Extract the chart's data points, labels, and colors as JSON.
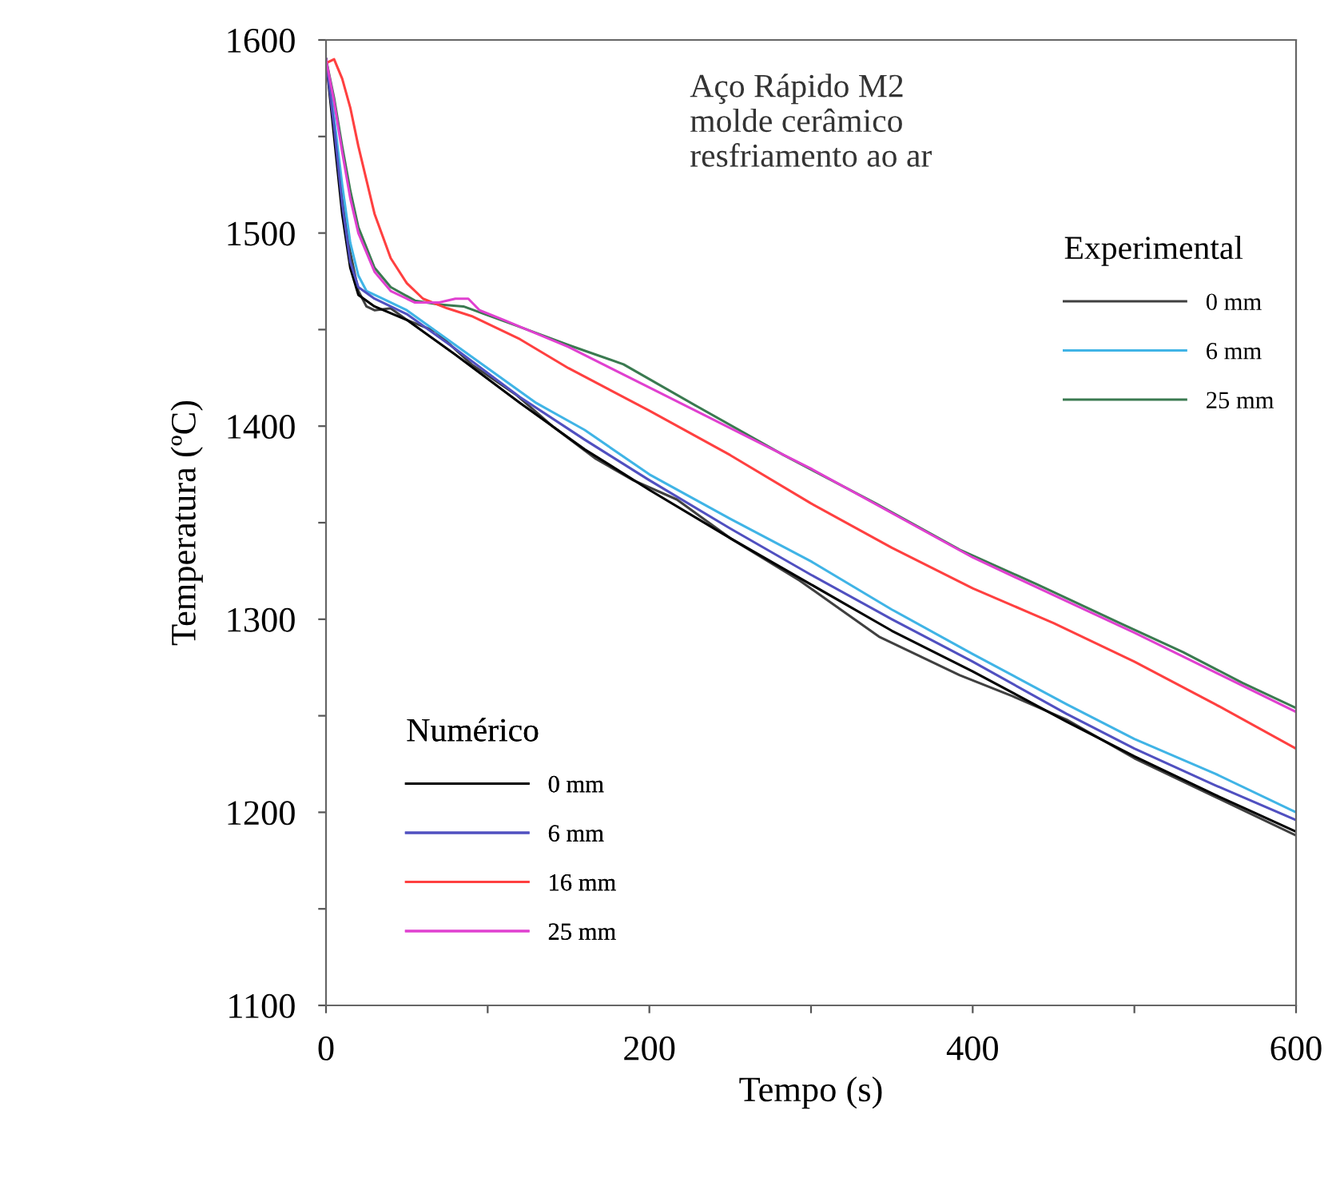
{
  "chart_data": {
    "type": "line",
    "xlabel": "Tempo (s)",
    "ylabel": "Temperatura (ºC)",
    "legend_title": [
      "Experimental",
      "Numérico"
    ],
    "annotations": [
      "Aço Rápido M2\nmolde cerâmico\nresfriamento ao ar"
    ],
    "xlim": [
      0,
      600
    ],
    "xticks": [
      0,
      {
        "value": 100,
        "label": null
      },
      200,
      {
        "value": 300,
        "label": null
      },
      400,
      {
        "value": 500,
        "label": null
      },
      600
    ],
    "ylim": [
      1100,
      1600
    ],
    "yticks": [
      1100,
      {
        "value": 1150,
        "label": null
      },
      1200,
      {
        "value": 1250,
        "label": null
      },
      1300,
      {
        "value": 1350,
        "label": null
      },
      1400,
      {
        "value": 1450,
        "label": null
      },
      1500,
      {
        "value": 1550,
        "label": null
      },
      1600
    ],
    "grid": false,
    "legend": [
      "right",
      "bottom left"
    ],
    "series": [
      {
        "name": "0 mm",
        "color": "#404040",
        "x": [
          0,
          3,
          6,
          10,
          15,
          20,
          25,
          30,
          40,
          50,
          68,
          90,
          118,
          140,
          167,
          190,
          217,
          250,
          293,
          342,
          392,
          425,
          458,
          500,
          550,
          600
        ],
        "values": [
          1590,
          1575,
          1550,
          1520,
          1490,
          1470,
          1462,
          1460,
          1461,
          1455,
          1449,
          1432,
          1416,
          1400,
          1383,
          1372,
          1362,
          1342,
          1320,
          1291,
          1271,
          1260,
          1248,
          1228,
          1208,
          1188
        ]
      },
      {
        "name": "6 mm",
        "color": "#40b4e6",
        "x": [
          0,
          5,
          10,
          15,
          20,
          25,
          35,
          50,
          70,
          100,
          130,
          160,
          200,
          250,
          300,
          350,
          400,
          458,
          500,
          550,
          600
        ],
        "values": [
          1590,
          1560,
          1525,
          1495,
          1478,
          1470,
          1466,
          1460,
          1448,
          1430,
          1412,
          1398,
          1375,
          1352,
          1330,
          1305,
          1282,
          1256,
          1238,
          1220,
          1200
        ]
      },
      {
        "name": "25 mm",
        "color": "#3a7a50",
        "x": [
          0,
          5,
          10,
          15,
          20,
          30,
          40,
          55,
          70,
          85,
          118,
          150,
          184,
          230,
          283,
          340,
          392,
          440,
          491,
          530,
          567,
          600
        ],
        "values": [
          1590,
          1570,
          1545,
          1522,
          1503,
          1482,
          1472,
          1465,
          1463,
          1462,
          1452,
          1442,
          1432,
          1410,
          1385,
          1360,
          1336,
          1318,
          1298,
          1283,
          1267,
          1254
        ]
      },
      {
        "name": "0 mm",
        "color": "#000000",
        "x": [
          0,
          5,
          10,
          15,
          20,
          30,
          50,
          80,
          120,
          160,
          200,
          250,
          300,
          350,
          400,
          458,
          500,
          550,
          600
        ],
        "values": [
          1590,
          1550,
          1510,
          1482,
          1468,
          1462,
          1455,
          1437,
          1412,
          1388,
          1367,
          1342,
          1318,
          1294,
          1273,
          1247,
          1229,
          1209,
          1190
        ]
      },
      {
        "name": "6 mm",
        "color": "#5050c0",
        "x": [
          0,
          5,
          10,
          15,
          20,
          30,
          50,
          80,
          120,
          160,
          200,
          250,
          300,
          350,
          400,
          458,
          500,
          550,
          600
        ],
        "values": [
          1590,
          1555,
          1515,
          1485,
          1472,
          1466,
          1458,
          1440,
          1415,
          1393,
          1372,
          1347,
          1323,
          1300,
          1278,
          1251,
          1233,
          1214,
          1196
        ]
      },
      {
        "name": "16 mm",
        "color": "#ff4040",
        "x": [
          0,
          5,
          10,
          15,
          20,
          30,
          40,
          50,
          60,
          75,
          90,
          120,
          150,
          200,
          250,
          300,
          350,
          400,
          450,
          500,
          550,
          600
        ],
        "values": [
          1588,
          1590,
          1580,
          1565,
          1545,
          1510,
          1487,
          1474,
          1466,
          1461,
          1457,
          1445,
          1430,
          1408,
          1385,
          1360,
          1337,
          1316,
          1298,
          1278,
          1256,
          1233
        ]
      },
      {
        "name": "25 mm",
        "color": "#e040d0",
        "x": [
          0,
          5,
          10,
          15,
          20,
          30,
          40,
          55,
          70,
          80,
          88,
          95,
          110,
          150,
          200,
          300,
          400,
          500,
          600
        ],
        "values": [
          1590,
          1568,
          1542,
          1518,
          1500,
          1480,
          1470,
          1464,
          1464,
          1466,
          1466,
          1460,
          1455,
          1441,
          1420,
          1378,
          1332,
          1293,
          1252
        ]
      }
    ]
  }
}
